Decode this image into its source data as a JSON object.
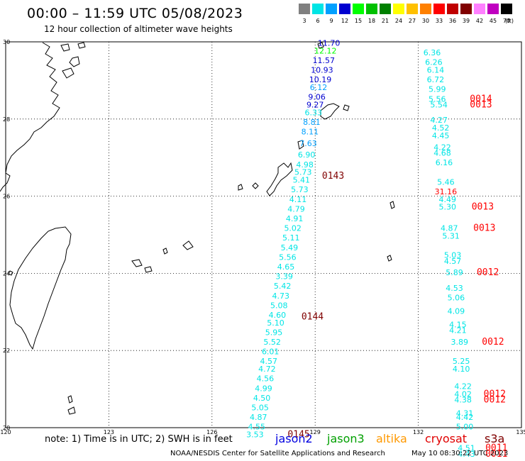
{
  "header": {
    "title": "00:00 – 11:59 UTC 05/08/2023",
    "subtitle": "12 hour collection of altimeter wave heights"
  },
  "legend": {
    "unit": "(ft)",
    "items": [
      {
        "label": "3",
        "color": "#808080"
      },
      {
        "label": "6",
        "color": "#00e5e5"
      },
      {
        "label": "9",
        "color": "#00a0ff"
      },
      {
        "label": "12",
        "color": "#0000d0"
      },
      {
        "label": "15",
        "color": "#00ff00"
      },
      {
        "label": "18",
        "color": "#00c000"
      },
      {
        "label": "21",
        "color": "#008000"
      },
      {
        "label": "24",
        "color": "#ffff00"
      },
      {
        "label": "27",
        "color": "#ffc000"
      },
      {
        "label": "30",
        "color": "#ff8000"
      },
      {
        "label": "33",
        "color": "#ff0000"
      },
      {
        "label": "36",
        "color": "#c00000"
      },
      {
        "label": "39",
        "color": "#800000"
      },
      {
        "label": "42",
        "color": "#ff80ff"
      },
      {
        "label": "45",
        "color": "#c000c0"
      },
      {
        "label": "70",
        "color": "#000000"
      }
    ]
  },
  "map": {
    "lat_range": [
      20,
      30
    ],
    "lon_range": [
      120,
      135
    ],
    "lat_labels": [
      "30",
      "28",
      "26",
      "24",
      "22",
      "20"
    ],
    "lon_labels": [
      "120",
      "123",
      "126",
      "129",
      "132",
      "135"
    ],
    "track_west": {
      "readings": [
        {
          "lat": 29.9,
          "lon": 129.4,
          "value": "11.70",
          "color": "#0000d0"
        },
        {
          "lat": 29.7,
          "lon": 129.3,
          "value": "12.12",
          "color": "#00ff00"
        },
        {
          "lat": 29.45,
          "lon": 129.25,
          "value": "11.57",
          "color": "#0000d0"
        },
        {
          "lat": 29.2,
          "lon": 129.2,
          "value": "10.93",
          "color": "#0000d0"
        },
        {
          "lat": 28.95,
          "lon": 129.15,
          "value": "10.19",
          "color": "#0000d0"
        },
        {
          "lat": 28.75,
          "lon": 129.1,
          "value": "6.12",
          "color": "#00a0ff"
        },
        {
          "lat": 28.5,
          "lon": 129.05,
          "value": "9.06",
          "color": "#0000d0"
        },
        {
          "lat": 28.3,
          "lon": 129.0,
          "value": "9.27",
          "color": "#0000d0"
        },
        {
          "lat": 28.1,
          "lon": 128.95,
          "value": "6.33",
          "color": "#00e5e5"
        },
        {
          "lat": 27.85,
          "lon": 128.9,
          "value": "8.81",
          "color": "#00a0ff"
        },
        {
          "lat": 27.6,
          "lon": 128.85,
          "value": "8.11",
          "color": "#00a0ff"
        },
        {
          "lat": 27.3,
          "lon": 128.8,
          "value": "7.63",
          "color": "#00a0ff"
        },
        {
          "lat": 27.0,
          "lon": 128.75,
          "value": "6.90",
          "color": "#00e5e5"
        },
        {
          "lat": 26.75,
          "lon": 128.7,
          "value": "4.98",
          "color": "#00e5e5"
        },
        {
          "lat": 26.55,
          "lon": 128.65,
          "value": "5.73",
          "color": "#00e5e5"
        },
        {
          "lat": 26.35,
          "lon": 128.6,
          "value": "5.41",
          "color": "#00e5e5"
        },
        {
          "lat": 26.1,
          "lon": 128.55,
          "value": "5.73",
          "color": "#00e5e5"
        },
        {
          "lat": 25.85,
          "lon": 128.5,
          "value": "4.11",
          "color": "#00e5e5"
        },
        {
          "lat": 25.6,
          "lon": 128.45,
          "value": "4.79",
          "color": "#00e5e5"
        },
        {
          "lat": 25.35,
          "lon": 128.4,
          "value": "4.91",
          "color": "#00e5e5"
        },
        {
          "lat": 25.1,
          "lon": 128.35,
          "value": "5.02",
          "color": "#00e5e5"
        },
        {
          "lat": 24.85,
          "lon": 128.3,
          "value": "5.11",
          "color": "#00e5e5"
        },
        {
          "lat": 24.6,
          "lon": 128.25,
          "value": "5.49",
          "color": "#00e5e5"
        },
        {
          "lat": 24.35,
          "lon": 128.2,
          "value": "5.56",
          "color": "#00e5e5"
        },
        {
          "lat": 24.1,
          "lon": 128.15,
          "value": "4.65",
          "color": "#00e5e5"
        },
        {
          "lat": 23.85,
          "lon": 128.1,
          "value": "3.39",
          "color": "#00e5e5"
        },
        {
          "lat": 23.6,
          "lon": 128.05,
          "value": "5.42",
          "color": "#00e5e5"
        },
        {
          "lat": 23.35,
          "lon": 128.0,
          "value": "4.73",
          "color": "#00e5e5"
        },
        {
          "lat": 23.1,
          "lon": 127.95,
          "value": "5.08",
          "color": "#00e5e5"
        },
        {
          "lat": 22.85,
          "lon": 127.9,
          "value": "4.60",
          "color": "#00e5e5"
        },
        {
          "lat": 22.65,
          "lon": 127.85,
          "value": "5.10",
          "color": "#00e5e5"
        },
        {
          "lat": 22.4,
          "lon": 127.8,
          "value": "5.95",
          "color": "#00e5e5"
        },
        {
          "lat": 22.15,
          "lon": 127.75,
          "value": "5.52",
          "color": "#00e5e5"
        },
        {
          "lat": 21.9,
          "lon": 127.7,
          "value": "6.01",
          "color": "#00e5e5"
        },
        {
          "lat": 21.65,
          "lon": 127.65,
          "value": "4.57",
          "color": "#00e5e5"
        },
        {
          "lat": 21.45,
          "lon": 127.6,
          "value": "4.72",
          "color": "#00e5e5"
        },
        {
          "lat": 21.2,
          "lon": 127.55,
          "value": "4.56",
          "color": "#00e5e5"
        },
        {
          "lat": 20.95,
          "lon": 127.5,
          "value": "4.99",
          "color": "#00e5e5"
        },
        {
          "lat": 20.7,
          "lon": 127.45,
          "value": "4.50",
          "color": "#00e5e5"
        },
        {
          "lat": 20.45,
          "lon": 127.4,
          "value": "5.05",
          "color": "#00e5e5"
        },
        {
          "lat": 20.2,
          "lon": 127.35,
          "value": "4.87",
          "color": "#00e5e5"
        },
        {
          "lat": 19.95,
          "lon": 127.3,
          "value": "4.55",
          "color": "#00e5e5"
        },
        {
          "lat": 19.75,
          "lon": 127.25,
          "value": "3.53",
          "color": "#00e5e5"
        }
      ],
      "times": [
        {
          "lat": 26.45,
          "lon": 129.2,
          "value": "0143",
          "color": "#800000"
        },
        {
          "lat": 22.8,
          "lon": 128.6,
          "value": "0144",
          "color": "#800000"
        },
        {
          "lat": 19.75,
          "lon": 128.2,
          "value": "0145",
          "color": "#800000"
        }
      ]
    },
    "track_east": {
      "readings": [
        {
          "lat": 29.65,
          "lon": 132.4,
          "value": "6.36",
          "color": "#00e5e5"
        },
        {
          "lat": 29.4,
          "lon": 132.45,
          "value": "6.26",
          "color": "#00e5e5"
        },
        {
          "lat": 29.2,
          "lon": 132.5,
          "value": "6.14",
          "color": "#00e5e5"
        },
        {
          "lat": 28.95,
          "lon": 132.5,
          "value": "6.72",
          "color": "#00e5e5"
        },
        {
          "lat": 28.7,
          "lon": 132.55,
          "value": "5.99",
          "color": "#00e5e5"
        },
        {
          "lat": 28.45,
          "lon": 132.55,
          "value": "5.56",
          "color": "#00e5e5"
        },
        {
          "lat": 28.3,
          "lon": 132.6,
          "value": "5.54",
          "color": "#00e5e5"
        },
        {
          "lat": 27.9,
          "lon": 132.6,
          "value": "4.27",
          "color": "#00e5e5"
        },
        {
          "lat": 27.7,
          "lon": 132.65,
          "value": "4.52",
          "color": "#00e5e5"
        },
        {
          "lat": 27.5,
          "lon": 132.65,
          "value": "4.45",
          "color": "#00e5e5"
        },
        {
          "lat": 27.2,
          "lon": 132.7,
          "value": "4.22",
          "color": "#00e5e5"
        },
        {
          "lat": 27.05,
          "lon": 132.7,
          "value": "4.68",
          "color": "#00e5e5"
        },
        {
          "lat": 26.8,
          "lon": 132.75,
          "value": "6.16",
          "color": "#00e5e5"
        },
        {
          "lat": 26.3,
          "lon": 132.8,
          "value": "5.46",
          "color": "#00e5e5"
        },
        {
          "lat": 26.05,
          "lon": 132.8,
          "value": "31.16",
          "color": "#ff0000"
        },
        {
          "lat": 25.85,
          "lon": 132.85,
          "value": "4.49",
          "color": "#00e5e5"
        },
        {
          "lat": 25.65,
          "lon": 132.85,
          "value": "5.30",
          "color": "#00e5e5"
        },
        {
          "lat": 25.1,
          "lon": 132.9,
          "value": "4.87",
          "color": "#00e5e5"
        },
        {
          "lat": 24.9,
          "lon": 132.95,
          "value": "5.31",
          "color": "#00e5e5"
        },
        {
          "lat": 24.4,
          "lon": 133.0,
          "value": "5.03",
          "color": "#00e5e5"
        },
        {
          "lat": 24.25,
          "lon": 133.0,
          "value": "4.57",
          "color": "#00e5e5"
        },
        {
          "lat": 23.95,
          "lon": 133.05,
          "value": "5.89",
          "color": "#00e5e5"
        },
        {
          "lat": 23.55,
          "lon": 133.05,
          "value": "4.53",
          "color": "#00e5e5"
        },
        {
          "lat": 23.3,
          "lon": 133.1,
          "value": "5.06",
          "color": "#00e5e5"
        },
        {
          "lat": 22.95,
          "lon": 133.1,
          "value": "4.09",
          "color": "#00e5e5"
        },
        {
          "lat": 22.6,
          "lon": 133.15,
          "value": "4.15",
          "color": "#00e5e5"
        },
        {
          "lat": 22.45,
          "lon": 133.15,
          "value": "4.21",
          "color": "#00e5e5"
        },
        {
          "lat": 22.15,
          "lon": 133.2,
          "value": "3.89",
          "color": "#00e5e5"
        },
        {
          "lat": 21.65,
          "lon": 133.25,
          "value": "5.25",
          "color": "#00e5e5"
        },
        {
          "lat": 21.45,
          "lon": 133.25,
          "value": "4.10",
          "color": "#00e5e5"
        },
        {
          "lat": 21.0,
          "lon": 133.3,
          "value": "4.22",
          "color": "#00e5e5"
        },
        {
          "lat": 20.8,
          "lon": 133.3,
          "value": "4.02",
          "color": "#00e5e5"
        },
        {
          "lat": 20.65,
          "lon": 133.3,
          "value": "4.38",
          "color": "#00e5e5"
        },
        {
          "lat": 20.3,
          "lon": 133.35,
          "value": "4.31",
          "color": "#00e5e5"
        },
        {
          "lat": 20.2,
          "lon": 133.35,
          "value": "4.42",
          "color": "#00e5e5"
        },
        {
          "lat": 19.95,
          "lon": 133.35,
          "value": "5.00",
          "color": "#00e5e5"
        },
        {
          "lat": 19.4,
          "lon": 133.4,
          "value": "4.51",
          "color": "#00e5e5"
        },
        {
          "lat": 19.25,
          "lon": 133.4,
          "value": "4.43",
          "color": "#00e5e5"
        }
      ],
      "times": [
        {
          "lat": 28.45,
          "lon": 133.5,
          "value": "0014",
          "color": "#ff0000"
        },
        {
          "lat": 28.3,
          "lon": 133.5,
          "value": "0013",
          "color": "#ff0000"
        },
        {
          "lat": 25.65,
          "lon": 133.55,
          "value": "0013",
          "color": "#ff0000"
        },
        {
          "lat": 25.1,
          "lon": 133.6,
          "value": "0013",
          "color": "#ff0000"
        },
        {
          "lat": 23.95,
          "lon": 133.7,
          "value": "0012",
          "color": "#ff0000"
        },
        {
          "lat": 22.15,
          "lon": 133.85,
          "value": "0012",
          "color": "#ff0000"
        },
        {
          "lat": 20.8,
          "lon": 133.9,
          "value": "0012",
          "color": "#ff0000"
        },
        {
          "lat": 20.65,
          "lon": 133.9,
          "value": "0012",
          "color": "#ff0000"
        },
        {
          "lat": 19.4,
          "lon": 133.95,
          "value": "0011",
          "color": "#ff0000"
        },
        {
          "lat": 19.25,
          "lon": 133.95,
          "value": "0011",
          "color": "#ff0000"
        }
      ]
    }
  },
  "footer": {
    "note": "note: 1) Time is in UTC; 2) SWH is in feet",
    "satellites": [
      {
        "name": "jason2",
        "color": "#0000e0"
      },
      {
        "name": "jason3",
        "color": "#00a000"
      },
      {
        "name": "altika",
        "color": "#ff9900"
      },
      {
        "name": "cryosat",
        "color": "#e00000"
      },
      {
        "name": "s3a",
        "color": "#800000"
      }
    ],
    "credit": "NOAA/NESDIS Center for Satellite Applications and Research",
    "timestamp": "May 10 08:30:22 UTC 2023"
  }
}
